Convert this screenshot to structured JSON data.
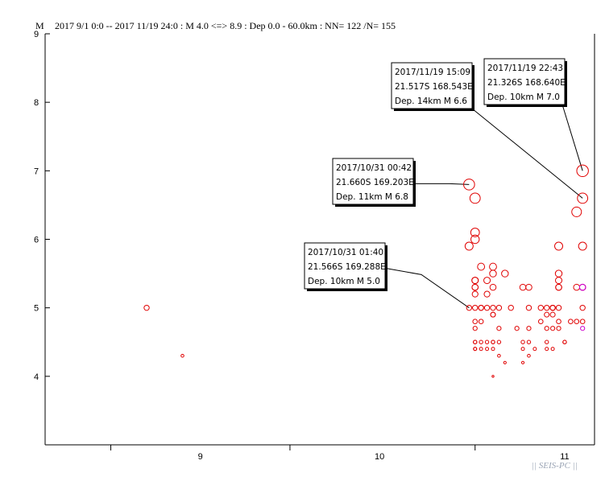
{
  "header": {
    "axis_symbol": "M",
    "text": "2017 9/1 0:0 -- 2017 11/19 24:0  : M 4.0 <=> 8.9   :  Dep 0.0 - 60.0km :  NN= 122 /N= 155"
  },
  "watermark": "|| SEIS-PC ||",
  "colors": {
    "event": "#e00000",
    "recent_event": "#cc00cc",
    "axis": "#000000"
  },
  "chart_data": {
    "type": "scatter",
    "xlabel": "",
    "ylabel": "M",
    "x_ticks": [
      "9",
      "10",
      "11"
    ],
    "y_ticks": [
      "4",
      "5",
      "6",
      "7",
      "8",
      "9"
    ],
    "xlim": [
      "2017-08-21",
      "2017-11-21"
    ],
    "ylim": [
      3.0,
      9.0
    ],
    "annotations": [
      {
        "lines": [
          "2017/11/19 22:43",
          "21.326S  168.640E",
          "Dep. 10km    M 7.0"
        ],
        "x": "2017-11-19",
        "y": 7.0
      },
      {
        "lines": [
          "2017/11/19 15:09",
          "21.517S  168.543E",
          "Dep. 14km    M 6.6"
        ],
        "x": "2017-11-19",
        "y": 6.6
      },
      {
        "lines": [
          "2017/10/31 00:42",
          "21.660S  169.203E",
          "Dep. 11km    M 6.8"
        ],
        "x": "2017-10-31",
        "y": 6.8
      },
      {
        "lines": [
          "2017/10/31 01:40",
          "21.566S  169.288E",
          "Dep. 10km    M 5.0"
        ],
        "x": "2017-10-31",
        "y": 5.0
      }
    ],
    "series": [
      {
        "color": "#e00000",
        "points": [
          {
            "x": "2017-09-07",
            "y": 5.0
          },
          {
            "x": "2017-09-13",
            "y": 4.3
          },
          {
            "x": "2017-10-31",
            "y": 6.8
          },
          {
            "x": "2017-10-31",
            "y": 5.9
          },
          {
            "x": "2017-10-31",
            "y": 5.0
          },
          {
            "x": "2017-11-01",
            "y": 6.6
          },
          {
            "x": "2017-11-01",
            "y": 6.1
          },
          {
            "x": "2017-11-01",
            "y": 6.0
          },
          {
            "x": "2017-11-01",
            "y": 5.4
          },
          {
            "x": "2017-11-01",
            "y": 5.4
          },
          {
            "x": "2017-11-01",
            "y": 5.3
          },
          {
            "x": "2017-11-01",
            "y": 5.3
          },
          {
            "x": "2017-11-01",
            "y": 5.2
          },
          {
            "x": "2017-11-01",
            "y": 5.0
          },
          {
            "x": "2017-11-01",
            "y": 4.8
          },
          {
            "x": "2017-11-01",
            "y": 4.7
          },
          {
            "x": "2017-11-01",
            "y": 4.5
          },
          {
            "x": "2017-11-01",
            "y": 4.4
          },
          {
            "x": "2017-11-01",
            "y": 4.5
          },
          {
            "x": "2017-11-01",
            "y": 4.4
          },
          {
            "x": "2017-11-02",
            "y": 5.6
          },
          {
            "x": "2017-11-02",
            "y": 5.0
          },
          {
            "x": "2017-11-02",
            "y": 5.0
          },
          {
            "x": "2017-11-02",
            "y": 4.5
          },
          {
            "x": "2017-11-02",
            "y": 4.4
          },
          {
            "x": "2017-11-02",
            "y": 4.8
          },
          {
            "x": "2017-11-03",
            "y": 5.4
          },
          {
            "x": "2017-11-03",
            "y": 5.2
          },
          {
            "x": "2017-11-03",
            "y": 5.0
          },
          {
            "x": "2017-11-03",
            "y": 4.4
          },
          {
            "x": "2017-11-03",
            "y": 4.5
          },
          {
            "x": "2017-11-04",
            "y": 5.6
          },
          {
            "x": "2017-11-04",
            "y": 5.5
          },
          {
            "x": "2017-11-04",
            "y": 5.3
          },
          {
            "x": "2017-11-04",
            "y": 5.0
          },
          {
            "x": "2017-11-04",
            "y": 4.9
          },
          {
            "x": "2017-11-04",
            "y": 4.9
          },
          {
            "x": "2017-11-04",
            "y": 4.5
          },
          {
            "x": "2017-11-04",
            "y": 4.5
          },
          {
            "x": "2017-11-04",
            "y": 4.4
          },
          {
            "x": "2017-11-04",
            "y": 4.0
          },
          {
            "x": "2017-11-05",
            "y": 5.0
          },
          {
            "x": "2017-11-05",
            "y": 4.7
          },
          {
            "x": "2017-11-05",
            "y": 4.5
          },
          {
            "x": "2017-11-05",
            "y": 4.3
          },
          {
            "x": "2017-11-06",
            "y": 5.5
          },
          {
            "x": "2017-11-06",
            "y": 4.2
          },
          {
            "x": "2017-11-07",
            "y": 5.0
          },
          {
            "x": "2017-11-08",
            "y": 4.7
          },
          {
            "x": "2017-11-09",
            "y": 5.3
          },
          {
            "x": "2017-11-09",
            "y": 4.4
          },
          {
            "x": "2017-11-09",
            "y": 4.5
          },
          {
            "x": "2017-11-09",
            "y": 4.2
          },
          {
            "x": "2017-11-10",
            "y": 5.3
          },
          {
            "x": "2017-11-10",
            "y": 5.0
          },
          {
            "x": "2017-11-10",
            "y": 4.7
          },
          {
            "x": "2017-11-10",
            "y": 4.5
          },
          {
            "x": "2017-11-10",
            "y": 4.3
          },
          {
            "x": "2017-11-11",
            "y": 4.4
          },
          {
            "x": "2017-11-12",
            "y": 5.0
          },
          {
            "x": "2017-11-12",
            "y": 4.8
          },
          {
            "x": "2017-11-13",
            "y": 5.0
          },
          {
            "x": "2017-11-13",
            "y": 4.9
          },
          {
            "x": "2017-11-13",
            "y": 4.7
          },
          {
            "x": "2017-11-13",
            "y": 4.5
          },
          {
            "x": "2017-11-13",
            "y": 4.4
          },
          {
            "x": "2017-11-14",
            "y": 5.0
          },
          {
            "x": "2017-11-14",
            "y": 5.0
          },
          {
            "x": "2017-11-14",
            "y": 5.0
          },
          {
            "x": "2017-11-14",
            "y": 4.9
          },
          {
            "x": "2017-11-14",
            "y": 4.7
          },
          {
            "x": "2017-11-14",
            "y": 4.4
          },
          {
            "x": "2017-11-15",
            "y": 5.9
          },
          {
            "x": "2017-11-15",
            "y": 5.5
          },
          {
            "x": "2017-11-15",
            "y": 5.4
          },
          {
            "x": "2017-11-15",
            "y": 5.3
          },
          {
            "x": "2017-11-15",
            "y": 5.3
          },
          {
            "x": "2017-11-15",
            "y": 5.0
          },
          {
            "x": "2017-11-15",
            "y": 4.8
          },
          {
            "x": "2017-11-15",
            "y": 4.7
          },
          {
            "x": "2017-11-16",
            "y": 4.5
          },
          {
            "x": "2017-11-16",
            "y": 4.5
          },
          {
            "x": "2017-11-17",
            "y": 4.8
          },
          {
            "x": "2017-11-18",
            "y": 6.4
          },
          {
            "x": "2017-11-18",
            "y": 5.3
          },
          {
            "x": "2017-11-18",
            "y": 4.8
          },
          {
            "x": "2017-11-19",
            "y": 7.0
          },
          {
            "x": "2017-11-19",
            "y": 6.6
          },
          {
            "x": "2017-11-19",
            "y": 5.9
          },
          {
            "x": "2017-11-19",
            "y": 5.3
          },
          {
            "x": "2017-11-19",
            "y": 5.0
          },
          {
            "x": "2017-11-19",
            "y": 4.8
          }
        ]
      },
      {
        "color": "#cc00cc",
        "points": [
          {
            "x": "2017-11-19",
            "y": 5.3
          },
          {
            "x": "2017-11-19",
            "y": 5.3
          },
          {
            "x": "2017-11-19",
            "y": 4.7
          }
        ]
      }
    ]
  }
}
